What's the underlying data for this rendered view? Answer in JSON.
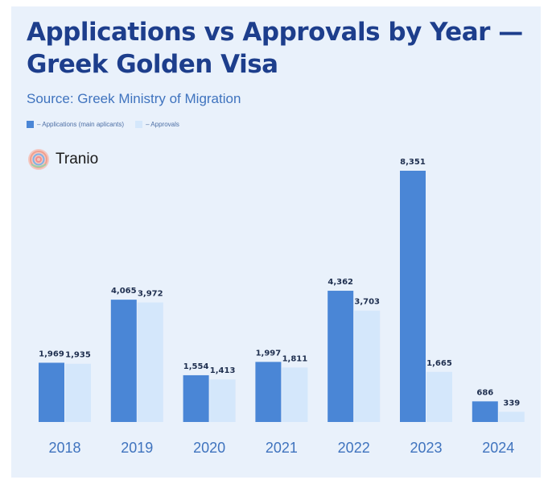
{
  "header": {
    "title_line1": "Applications vs Approvals by Year —",
    "title_line2": "Greek Golden Visa",
    "subtitle": "Source: Greek Ministry of Migration"
  },
  "legend": {
    "applications": "– Applications (main aplicants)",
    "approvals": "– Approvals"
  },
  "brand": {
    "name": "Tranio"
  },
  "colors": {
    "applications": "#4a86d6",
    "approvals": "#d4e7fb",
    "title": "#1d3e8c",
    "axis_text": "#3f73be",
    "value_text": "#1f2f4f",
    "background": "#e9f1fb"
  },
  "chart_data": {
    "type": "bar",
    "title": "Applications vs Approvals by Year — Greek Golden Visa",
    "categories": [
      "2018",
      "2019",
      "2020",
      "2021",
      "2022",
      "2023",
      "2024"
    ],
    "series": [
      {
        "name": "– Applications (main aplicants)",
        "values": [
          1969,
          4065,
          1554,
          1997,
          4362,
          8351,
          686
        ]
      },
      {
        "name": "– Approvals",
        "values": [
          1935,
          3972,
          1413,
          1811,
          3703,
          1665,
          339
        ]
      }
    ],
    "value_labels": {
      "applications": [
        "1,969",
        "4,065",
        "1,554",
        "1,997",
        "4,362",
        "8,351",
        "686"
      ],
      "approvals": [
        "1,935",
        "3,972",
        "1,413",
        "1,811",
        "3,703",
        "1,665",
        "339"
      ]
    },
    "ylim": [
      0,
      8351
    ],
    "grid": false,
    "legend_position": "top-left",
    "xlabel": "",
    "ylabel": ""
  }
}
